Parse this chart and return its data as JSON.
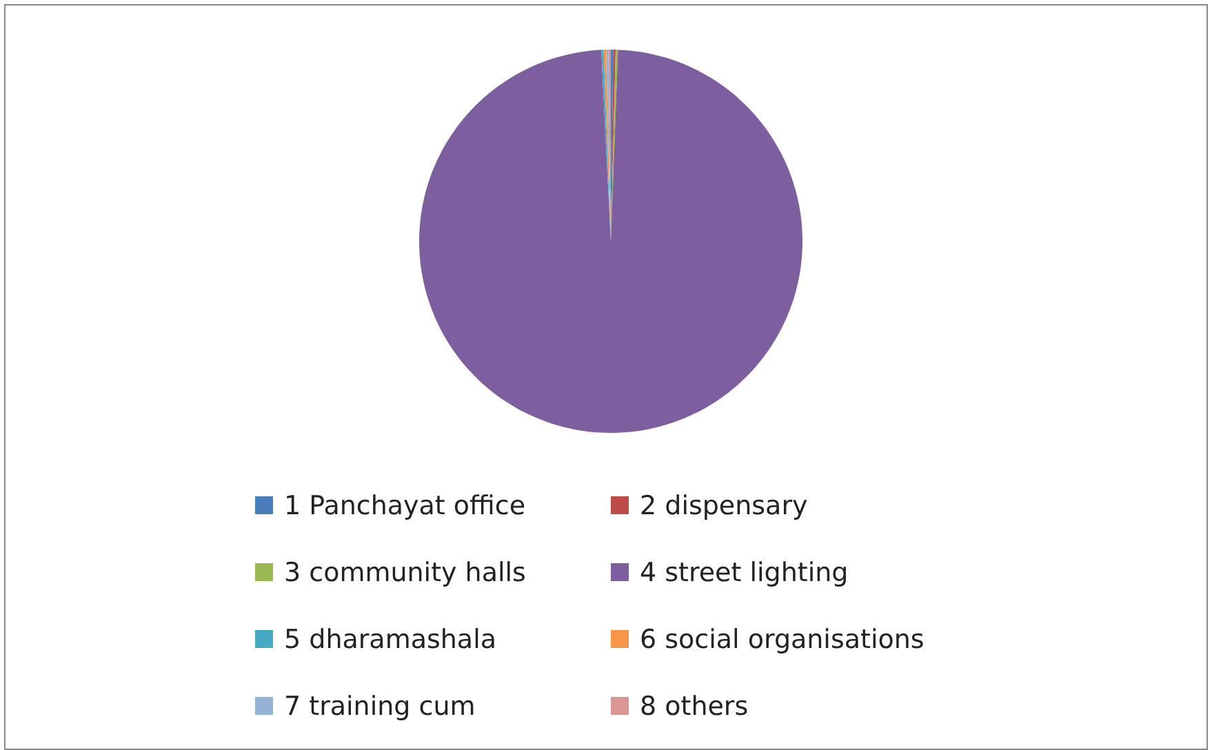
{
  "chart_data": {
    "type": "pie",
    "categories": [
      "1 Panchayat office",
      "2 dispensary",
      "3 community halls",
      "4 street lighting",
      "5 dharamashala",
      "6 social organisations",
      "7 training cum",
      "8 others"
    ],
    "values": [
      0.2,
      0.2,
      0.2,
      98.6,
      0.2,
      0.2,
      0.2,
      0.2
    ],
    "colors": [
      "#4a7ebb",
      "#be4b48",
      "#98b954",
      "#7d5fa0",
      "#46aac5",
      "#f79646",
      "#95b3d7",
      "#d99694"
    ],
    "legend": "bottom"
  }
}
